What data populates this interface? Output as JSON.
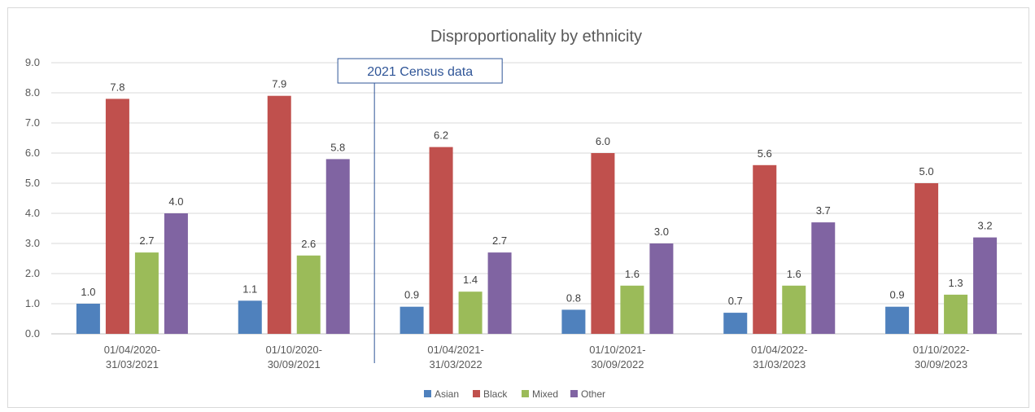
{
  "chart_data": {
    "type": "bar",
    "title": "Disproportionality by ethnicity",
    "categories": [
      [
        "01/04/2020-",
        "31/03/2021"
      ],
      [
        "01/10/2020-",
        "30/09/2021"
      ],
      [
        "01/04/2021-",
        "31/03/2022"
      ],
      [
        "01/10/2021-",
        "30/09/2022"
      ],
      [
        "01/04/2022-",
        "31/03/2023"
      ],
      [
        "01/10/2022-",
        "30/09/2023"
      ]
    ],
    "series": [
      {
        "name": "Asian",
        "color": "#4f81bd",
        "values": [
          1.0,
          1.1,
          0.9,
          0.8,
          0.7,
          0.9
        ]
      },
      {
        "name": "Black",
        "color": "#c0504d",
        "values": [
          7.8,
          7.9,
          6.2,
          6.0,
          5.6,
          5.0
        ]
      },
      {
        "name": "Mixed",
        "color": "#9bbb59",
        "values": [
          2.7,
          2.6,
          1.4,
          1.6,
          1.6,
          1.3
        ]
      },
      {
        "name": "Other",
        "color": "#8064a2",
        "values": [
          4.0,
          5.8,
          2.7,
          3.0,
          3.7,
          3.2
        ]
      }
    ],
    "ylim": [
      0,
      9
    ],
    "yticks": [
      0,
      1,
      2,
      3,
      4,
      5,
      6,
      7,
      8,
      9
    ],
    "grid": true,
    "legend_position": "bottom",
    "annotation": {
      "text": "2021 Census data",
      "after_category_index": 1,
      "color": "#2f5597"
    }
  }
}
